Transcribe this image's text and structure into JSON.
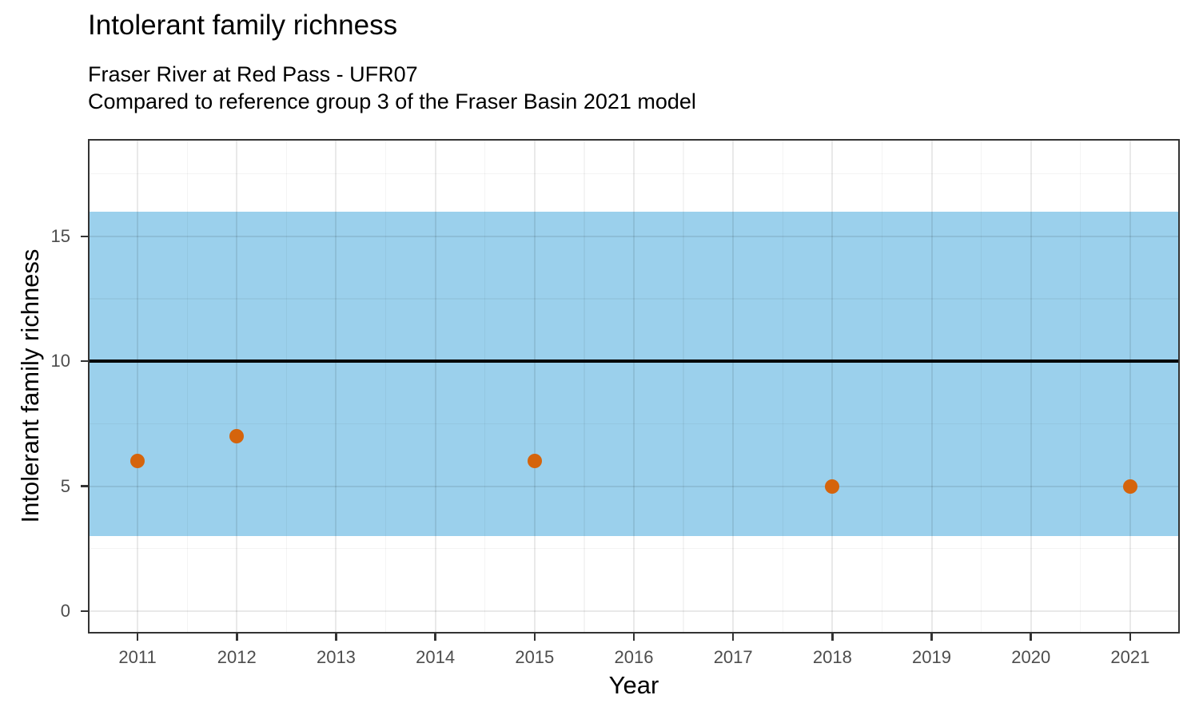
{
  "header": {
    "title": "Intolerant family richness",
    "subtitle_line1": "Fraser River at Red Pass - UFR07",
    "subtitle_line2": "Compared to reference group 3 of the Fraser Basin 2021 model"
  },
  "chart_data": {
    "type": "scatter",
    "title": "Intolerant family richness",
    "subtitle": [
      "Fraser River at Red Pass - UFR07",
      "Compared to reference group 3 of the Fraser Basin 2021 model"
    ],
    "xlabel": "Year",
    "ylabel": "Intolerant family richness",
    "x": [
      2011,
      2012,
      2015,
      2018,
      2021
    ],
    "y": [
      6,
      7,
      6,
      5,
      5
    ],
    "x_ticks": [
      2011,
      2012,
      2013,
      2014,
      2015,
      2016,
      2017,
      2018,
      2019,
      2020,
      2021
    ],
    "x_tick_labels": [
      "2011",
      "2012",
      "2013",
      "2014",
      "2015",
      "2016",
      "2017",
      "2018",
      "2019",
      "2020",
      "2021"
    ],
    "y_ticks": [
      0,
      5,
      10,
      15
    ],
    "y_tick_labels": [
      "0",
      "5",
      "10",
      "15"
    ],
    "x_minor_ticks": [
      2011.5,
      2012.5,
      2013.5,
      2014.5,
      2015.5,
      2016.5,
      2017.5,
      2018.5,
      2019.5,
      2020.5
    ],
    "y_minor_ticks": [
      2.5,
      7.5,
      12.5,
      17.5
    ],
    "xlim": [
      2010.5,
      2021.5
    ],
    "ylim": [
      -0.9,
      18.9
    ],
    "reference_band": {
      "ymin": 3,
      "ymax": 16,
      "color": "#9BD0EC"
    },
    "reference_line": {
      "y": 10,
      "color": "#000000"
    },
    "point_color": "#D5640C",
    "grid": true,
    "legend": false
  },
  "colors": {
    "band": "#9BD0EC",
    "point": "#D5640C",
    "reference_line": "#000000",
    "panel_border": "#333333",
    "tick_text": "#4d4d4d",
    "title_text": "#000000"
  }
}
